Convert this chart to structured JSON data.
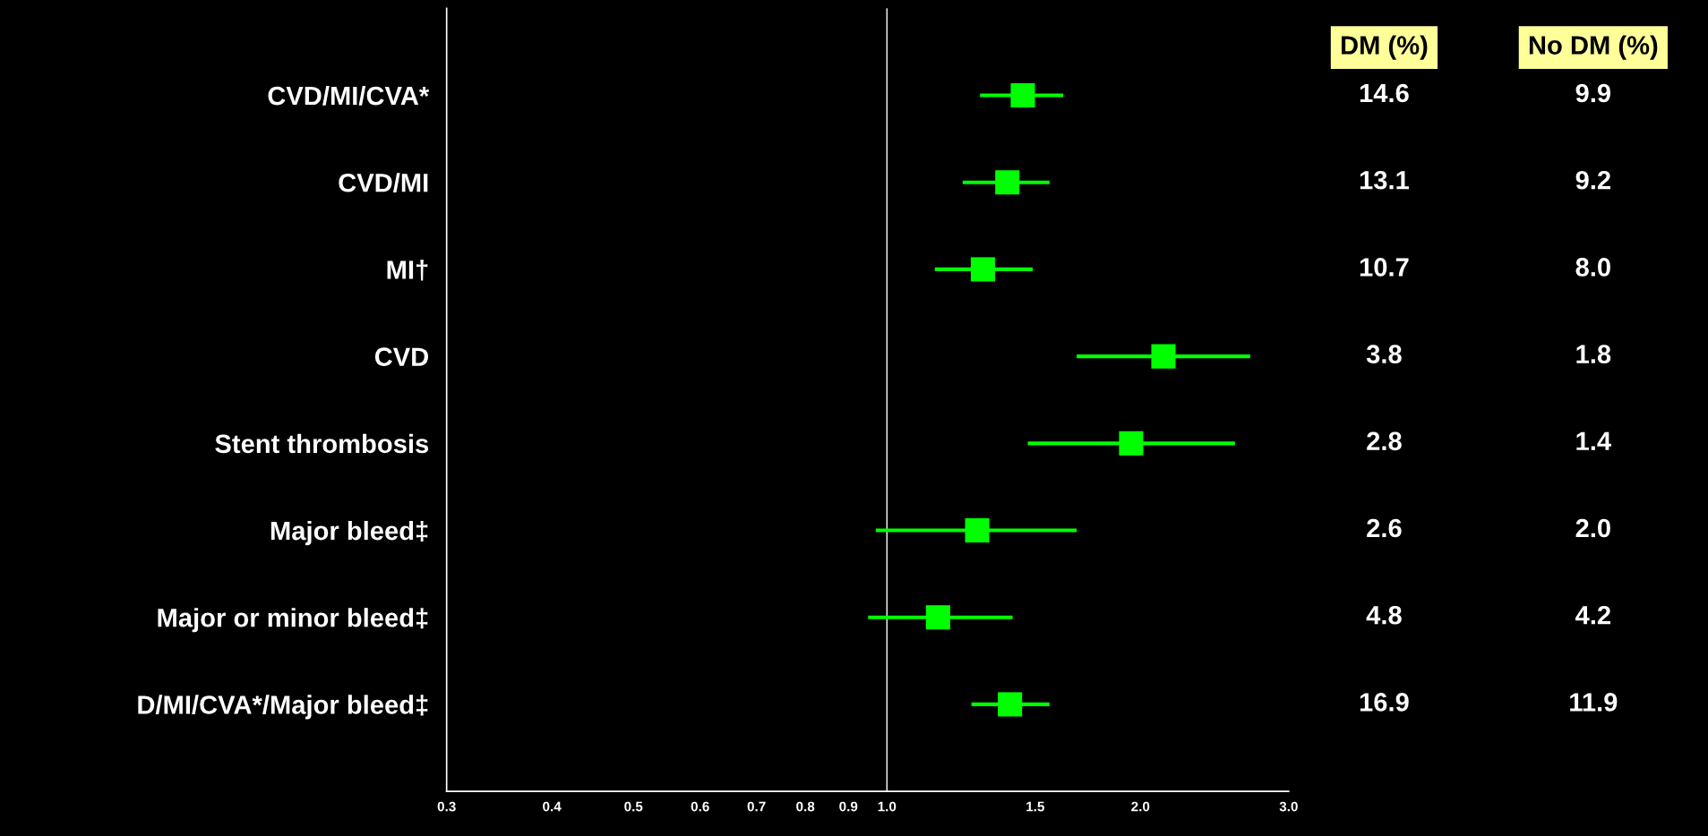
{
  "chart_data": [
    {
      "type": "scatter",
      "orientation": "horizontal",
      "log": "x",
      "marker": "square",
      "color": "#00ff00",
      "categories": [
        "CVD/MI/CVA*",
        "CVD/MI",
        "MI†",
        "CVD",
        "Stent thrombosis",
        "Major bleed‡",
        "Major or minor bleed‡",
        "D/MI/CVA*/Major bleed‡"
      ],
      "values": [
        1.45,
        1.39,
        1.3,
        2.13,
        1.95,
        1.28,
        1.15,
        1.4
      ],
      "errors": [
        [
          1.29,
          1.62
        ],
        [
          1.23,
          1.56
        ],
        [
          1.14,
          1.49
        ],
        [
          1.68,
          2.7
        ],
        [
          1.47,
          2.59
        ],
        [
          0.97,
          1.68
        ],
        [
          0.95,
          1.41
        ],
        [
          1.26,
          1.56
        ]
      ],
      "xlim": [
        0.3,
        3.0
      ],
      "xticks": [
        0.3,
        0.4,
        0.5,
        0.6,
        0.7,
        0.8,
        0.9,
        {
          "value": 1,
          "label": "1.0"
        },
        1.5,
        {
          "value": 2,
          "label": "2.0"
        },
        {
          "value": 3,
          "label": "3.0"
        }
      ],
      "ref_lines": [
        {
          "axis": "x",
          "value": 1,
          "color": "#ffffff"
        }
      ]
    },
    {
      "type": "other",
      "annotations": [
        "DM (%)",
        "No DM (%)",
        "14.6",
        "9.9",
        "13.1",
        "9.2",
        "10.7",
        "8.0",
        "3.8",
        "1.8",
        "2.8",
        "1.4",
        "2.6",
        "2.0",
        "4.8",
        "4.2",
        "16.9",
        "11.9"
      ]
    }
  ]
}
